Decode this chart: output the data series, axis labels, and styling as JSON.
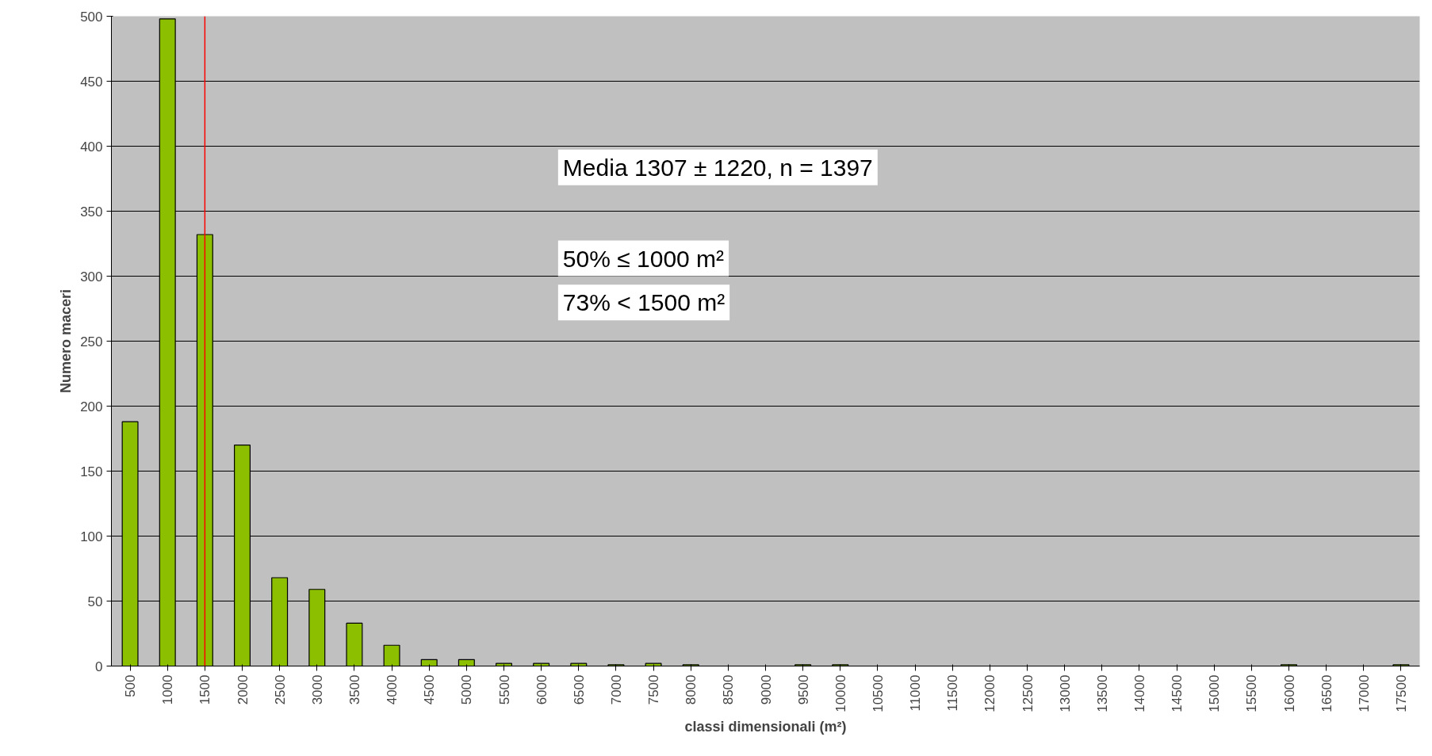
{
  "chart_data": {
    "type": "bar",
    "xlabel": "classi dimensionali (m²)",
    "ylabel": "Numero maceri",
    "categories": [
      "500",
      "1000",
      "1500",
      "2000",
      "2500",
      "3000",
      "3500",
      "4000",
      "4500",
      "5000",
      "5500",
      "6000",
      "6500",
      "7000",
      "7500",
      "8000",
      "8500",
      "9000",
      "9500",
      "10000",
      "10500",
      "11000",
      "11500",
      "12000",
      "12500",
      "13000",
      "13500",
      "14000",
      "14500",
      "15000",
      "15500",
      "16000",
      "16500",
      "17000",
      "17500"
    ],
    "values": [
      188,
      498,
      332,
      170,
      68,
      59,
      33,
      16,
      5,
      5,
      2,
      2,
      2,
      1,
      2,
      1,
      0,
      0,
      1,
      1,
      0,
      0,
      0,
      0,
      0,
      0,
      0,
      0,
      0,
      0,
      0,
      1,
      0,
      0,
      1
    ],
    "color": "#8cbf00",
    "ylim": [
      0,
      500
    ],
    "yticks": [
      0,
      50,
      100,
      150,
      200,
      250,
      300,
      350,
      400,
      450,
      500
    ],
    "grid": "y",
    "ref_lines": [
      {
        "axis": "x",
        "value": "1500",
        "color": "#ff0000"
      }
    ],
    "annotations": [
      "Media 1307 ± 1220, n = 1397",
      "50% ≤ 1000 m²",
      "73% < 1500 m²"
    ]
  }
}
